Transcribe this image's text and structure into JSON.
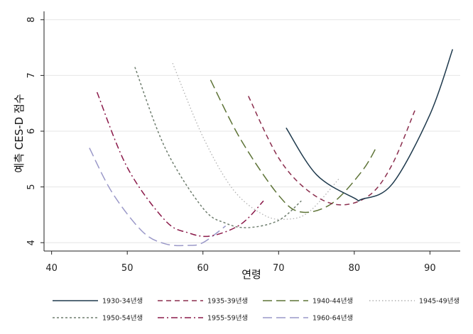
{
  "chart_data": {
    "type": "line",
    "title": "",
    "xlabel": "연령",
    "ylabel": "예측 CES-D 점수",
    "xlim": [
      39,
      94
    ],
    "ylim": [
      3.85,
      8.15
    ],
    "xticks": [
      40,
      50,
      60,
      70,
      80,
      90
    ],
    "yticks": [
      4,
      5,
      6,
      7,
      8
    ],
    "grid": "horizontal",
    "legend_position": "bottom",
    "series": [
      {
        "name": "1930-34년생",
        "color": "#1f3a4d",
        "dash": "solid",
        "x": [
          71,
          75,
          80,
          81,
          85,
          90,
          93
        ],
        "y": [
          6.06,
          5.22,
          4.8,
          4.78,
          5.05,
          6.3,
          7.47
        ]
      },
      {
        "name": "1935-39년생",
        "color": "#8b2e4e",
        "dash": "dashed",
        "x": [
          66,
          70,
          74,
          78,
          82,
          85,
          88
        ],
        "y": [
          6.63,
          5.52,
          4.92,
          4.68,
          4.85,
          5.4,
          6.37
        ]
      },
      {
        "name": "1940-44년생",
        "color": "#5d7336",
        "dash": "longdash",
        "x": [
          61,
          65,
          70,
          73,
          77,
          81,
          83
        ],
        "y": [
          6.92,
          5.85,
          4.85,
          4.55,
          4.7,
          5.28,
          5.73
        ]
      },
      {
        "name": "1945-49년생",
        "color": "#b0b0b0",
        "dash": "dotted",
        "x": [
          56,
          60,
          64,
          68,
          71,
          74,
          78
        ],
        "y": [
          7.22,
          5.9,
          4.95,
          4.5,
          4.42,
          4.55,
          5.15
        ]
      },
      {
        "name": "1950-54년생",
        "color": "#6e7d6e",
        "dash": "shortdash",
        "x": [
          51,
          55,
          60,
          63,
          66,
          70,
          73
        ],
        "y": [
          7.15,
          5.7,
          4.62,
          4.35,
          4.27,
          4.4,
          4.75
        ]
      },
      {
        "name": "1955-59년생",
        "color": "#8b1a4a",
        "dash": "dashdot",
        "x": [
          46,
          50,
          55,
          58,
          61,
          65,
          68
        ],
        "y": [
          6.7,
          5.35,
          4.4,
          4.18,
          4.12,
          4.33,
          4.75
        ]
      },
      {
        "name": "1960-64년생",
        "color": "#9a98c8",
        "dash": "longdash",
        "x": [
          45,
          48,
          52,
          55,
          58,
          60,
          63
        ],
        "y": [
          5.7,
          4.9,
          4.2,
          3.98,
          3.95,
          4.0,
          4.3
        ]
      }
    ]
  }
}
